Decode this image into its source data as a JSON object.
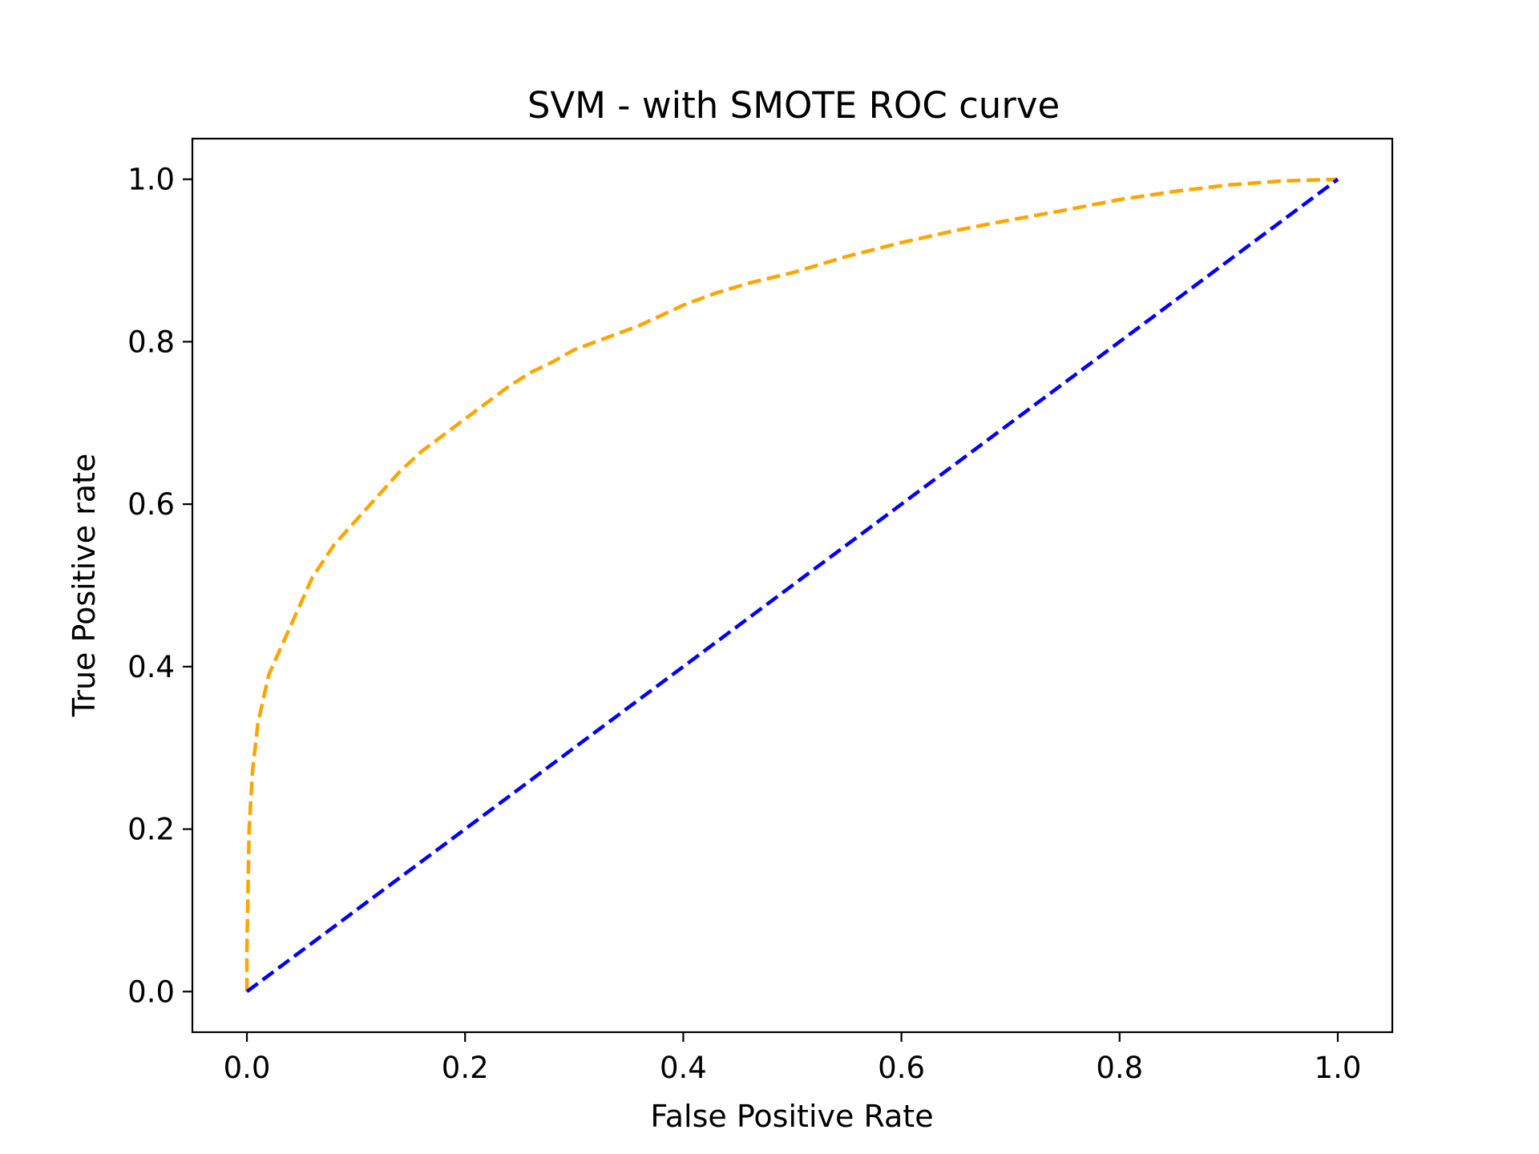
{
  "chart_data": {
    "type": "line",
    "title": "SVM - with SMOTE ROC curve",
    "xlabel": "False Positive Rate",
    "ylabel": "True Positive rate",
    "xlim": [
      -0.05,
      1.05
    ],
    "ylim": [
      -0.05,
      1.05
    ],
    "xticks": [
      0.0,
      0.2,
      0.4,
      0.6,
      0.8,
      1.0
    ],
    "yticks": [
      0.0,
      0.2,
      0.4,
      0.6,
      0.8,
      1.0
    ],
    "xtick_labels": [
      "0.0",
      "0.2",
      "0.4",
      "0.6",
      "0.8",
      "1.0"
    ],
    "ytick_labels": [
      "0.0",
      "0.2",
      "0.4",
      "0.6",
      "0.8",
      "1.0"
    ],
    "grid": false,
    "legend": "none",
    "series": [
      {
        "color": "#ffa500",
        "line_style": "dashed",
        "x": [
          0.0,
          0.0,
          0.002,
          0.005,
          0.01,
          0.015,
          0.02,
          0.03,
          0.04,
          0.06,
          0.08,
          0.1,
          0.12,
          0.14,
          0.16,
          0.18,
          0.2,
          0.22,
          0.24,
          0.26,
          0.28,
          0.3,
          0.33,
          0.36,
          0.4,
          0.43,
          0.46,
          0.5,
          0.55,
          0.6,
          0.65,
          0.7,
          0.75,
          0.8,
          0.85,
          0.9,
          0.95,
          1.0
        ],
        "y": [
          0.0,
          0.05,
          0.2,
          0.27,
          0.33,
          0.36,
          0.39,
          0.42,
          0.45,
          0.51,
          0.55,
          0.58,
          0.61,
          0.64,
          0.665,
          0.685,
          0.705,
          0.725,
          0.745,
          0.762,
          0.775,
          0.79,
          0.805,
          0.82,
          0.845,
          0.86,
          0.872,
          0.885,
          0.905,
          0.922,
          0.937,
          0.95,
          0.962,
          0.975,
          0.985,
          0.993,
          0.998,
          1.0
        ]
      },
      {
        "color": "#0000ff",
        "line_style": "dashed",
        "x": [
          0.0,
          1.0
        ],
        "y": [
          0.0,
          1.0
        ]
      }
    ]
  }
}
